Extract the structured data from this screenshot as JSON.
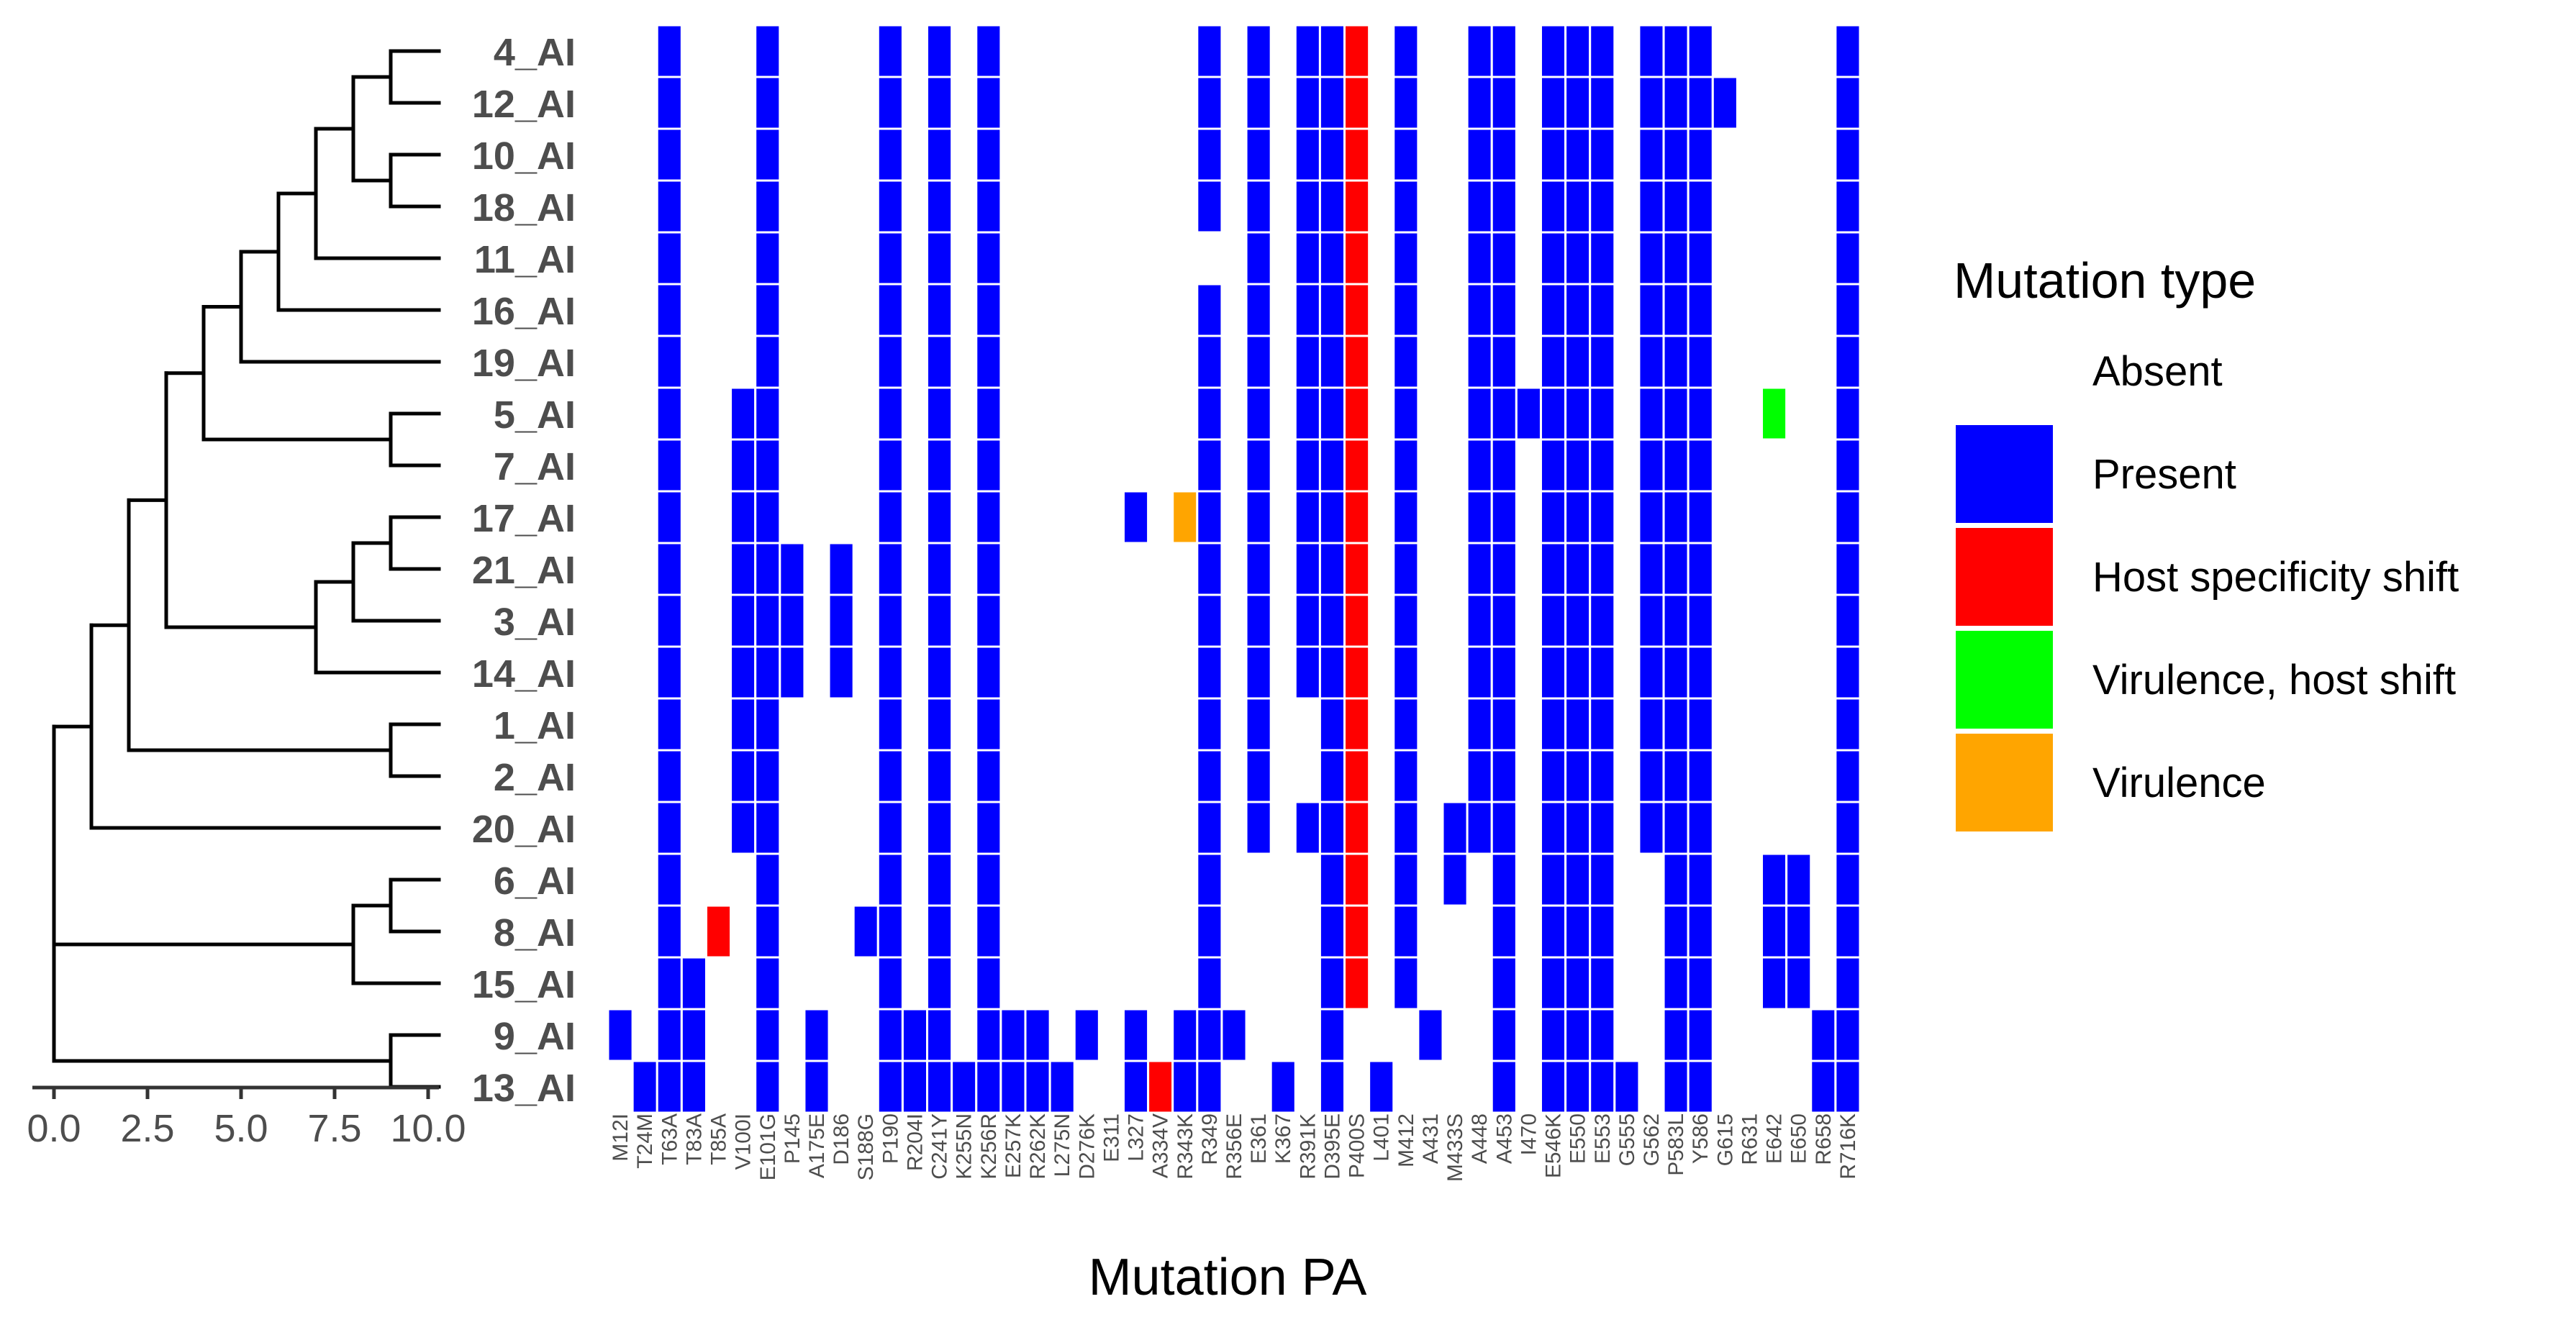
{
  "chart_data": [
    {
      "type": "dendrogram",
      "name": "tree",
      "tick_labels": [
        "0.0",
        "2.5",
        "5.0",
        "7.5",
        "10.0"
      ],
      "xlim": [
        0,
        10
      ],
      "leaves": [
        "4_AI",
        "12_AI",
        "10_AI",
        "18_AI",
        "11_AI",
        "16_AI",
        "19_AI",
        "5_AI",
        "7_AI",
        "17_AI",
        "21_AI",
        "3_AI",
        "14_AI",
        "1_AI",
        "2_AI",
        "20_AI",
        "6_AI",
        "8_AI",
        "15_AI",
        "9_AI",
        "13_AI"
      ],
      "merges": [
        {
          "a": "4_AI",
          "b": "12_AI",
          "h": 9
        },
        {
          "a": "10_AI",
          "b": "18_AI",
          "h": 9
        },
        {
          "a": 0,
          "b": 1,
          "h": 8
        },
        {
          "a": 2,
          "b": "11_AI",
          "h": 7
        },
        {
          "a": 3,
          "b": "16_AI",
          "h": 6
        },
        {
          "a": 4,
          "b": "19_AI",
          "h": 5
        },
        {
          "a": "5_AI",
          "b": "7_AI",
          "h": 9
        },
        {
          "a": 5,
          "b": 6,
          "h": 4
        },
        {
          "a": "17_AI",
          "b": "21_AI",
          "h": 9
        },
        {
          "a": 8,
          "b": "3_AI",
          "h": 8
        },
        {
          "a": 9,
          "b": "14_AI",
          "h": 7
        },
        {
          "a": 7,
          "b": 10,
          "h": 3
        },
        {
          "a": "1_AI",
          "b": "2_AI",
          "h": 9
        },
        {
          "a": 11,
          "b": 12,
          "h": 2
        },
        {
          "a": 13,
          "b": "20_AI",
          "h": 1
        },
        {
          "a": "6_AI",
          "b": "8_AI",
          "h": 9
        },
        {
          "a": 15,
          "b": "15_AI",
          "h": 8
        },
        {
          "a": "9_AI",
          "b": "13_AI",
          "h": 9
        },
        {
          "a": 16,
          "b": 17,
          "h": 0
        },
        {
          "a": 14,
          "b": 18,
          "h": 0
        }
      ]
    },
    {
      "type": "heatmap",
      "name": "mutations",
      "xlabel": "Mutation PA",
      "x": [
        "M12I",
        "T24M",
        "T63A",
        "T83A",
        "T85A",
        "V100I",
        "E101G",
        "P145",
        "A175E",
        "D186",
        "S188G",
        "P190",
        "R204I",
        "C241Y",
        "K255N",
        "K256R",
        "E257K",
        "R262K",
        "L275N",
        "D276K",
        "E311",
        "L327",
        "A334V",
        "R343K",
        "R349",
        "R356E",
        "E361",
        "K367",
        "R391K",
        "D395E",
        "P400S",
        "L401",
        "M412",
        "A431",
        "M433S",
        "A448",
        "A453",
        "I470",
        "E546K",
        "E550",
        "E553",
        "G555",
        "G562",
        "P583L",
        "Y586",
        "G615",
        "R631",
        "E642",
        "E650",
        "R658",
        "R716K"
      ],
      "y": [
        "4_AI",
        "12_AI",
        "10_AI",
        "18_AI",
        "11_AI",
        "16_AI",
        "19_AI",
        "5_AI",
        "7_AI",
        "17_AI",
        "21_AI",
        "3_AI",
        "14_AI",
        "1_AI",
        "2_AI",
        "20_AI",
        "6_AI",
        "8_AI",
        "15_AI",
        "9_AI",
        "13_AI"
      ],
      "categories": [
        "Absent",
        "Present",
        "Host specificity shift",
        "Virulence, host shift",
        "Virulence"
      ],
      "category_colors": [
        "#ffffff",
        "#0000ff",
        "#ff0000",
        "#00ff00",
        "#ffa500"
      ],
      "cells": [
        [
          0,
          0,
          1,
          0,
          0,
          0,
          1,
          0,
          0,
          0,
          0,
          1,
          0,
          1,
          0,
          1,
          0,
          0,
          0,
          0,
          0,
          0,
          0,
          0,
          1,
          0,
          1,
          0,
          1,
          1,
          2,
          0,
          1,
          0,
          0,
          1,
          1,
          0,
          1,
          1,
          1,
          0,
          1,
          1,
          1,
          0,
          0,
          0,
          0,
          0,
          1
        ],
        [
          0,
          0,
          1,
          0,
          0,
          0,
          1,
          0,
          0,
          0,
          0,
          1,
          0,
          1,
          0,
          1,
          0,
          0,
          0,
          0,
          0,
          0,
          0,
          0,
          1,
          0,
          1,
          0,
          1,
          1,
          2,
          0,
          1,
          0,
          0,
          1,
          1,
          0,
          1,
          1,
          1,
          0,
          1,
          1,
          1,
          1,
          0,
          0,
          0,
          0,
          1
        ],
        [
          0,
          0,
          1,
          0,
          0,
          0,
          1,
          0,
          0,
          0,
          0,
          1,
          0,
          1,
          0,
          1,
          0,
          0,
          0,
          0,
          0,
          0,
          0,
          0,
          1,
          0,
          1,
          0,
          1,
          1,
          2,
          0,
          1,
          0,
          0,
          1,
          1,
          0,
          1,
          1,
          1,
          0,
          1,
          1,
          1,
          0,
          0,
          0,
          0,
          0,
          1
        ],
        [
          0,
          0,
          1,
          0,
          0,
          0,
          1,
          0,
          0,
          0,
          0,
          1,
          0,
          1,
          0,
          1,
          0,
          0,
          0,
          0,
          0,
          0,
          0,
          0,
          1,
          0,
          1,
          0,
          1,
          1,
          2,
          0,
          1,
          0,
          0,
          1,
          1,
          0,
          1,
          1,
          1,
          0,
          1,
          1,
          1,
          0,
          0,
          0,
          0,
          0,
          1
        ],
        [
          0,
          0,
          1,
          0,
          0,
          0,
          1,
          0,
          0,
          0,
          0,
          1,
          0,
          1,
          0,
          1,
          0,
          0,
          0,
          0,
          0,
          0,
          0,
          0,
          0,
          0,
          1,
          0,
          1,
          1,
          2,
          0,
          1,
          0,
          0,
          1,
          1,
          0,
          1,
          1,
          1,
          0,
          1,
          1,
          1,
          0,
          0,
          0,
          0,
          0,
          1
        ],
        [
          0,
          0,
          1,
          0,
          0,
          0,
          1,
          0,
          0,
          0,
          0,
          1,
          0,
          1,
          0,
          1,
          0,
          0,
          0,
          0,
          0,
          0,
          0,
          0,
          1,
          0,
          1,
          0,
          1,
          1,
          2,
          0,
          1,
          0,
          0,
          1,
          1,
          0,
          1,
          1,
          1,
          0,
          1,
          1,
          1,
          0,
          0,
          0,
          0,
          0,
          1
        ],
        [
          0,
          0,
          1,
          0,
          0,
          0,
          1,
          0,
          0,
          0,
          0,
          1,
          0,
          1,
          0,
          1,
          0,
          0,
          0,
          0,
          0,
          0,
          0,
          0,
          1,
          0,
          1,
          0,
          1,
          1,
          2,
          0,
          1,
          0,
          0,
          1,
          1,
          0,
          1,
          1,
          1,
          0,
          1,
          1,
          1,
          0,
          0,
          0,
          0,
          0,
          1
        ],
        [
          0,
          0,
          1,
          0,
          0,
          1,
          1,
          0,
          0,
          0,
          0,
          1,
          0,
          1,
          0,
          1,
          0,
          0,
          0,
          0,
          0,
          0,
          0,
          0,
          1,
          0,
          1,
          0,
          1,
          1,
          2,
          0,
          1,
          0,
          0,
          1,
          1,
          1,
          1,
          1,
          1,
          0,
          1,
          1,
          1,
          0,
          0,
          3,
          0,
          0,
          1
        ],
        [
          0,
          0,
          1,
          0,
          0,
          1,
          1,
          0,
          0,
          0,
          0,
          1,
          0,
          1,
          0,
          1,
          0,
          0,
          0,
          0,
          0,
          0,
          0,
          0,
          1,
          0,
          1,
          0,
          1,
          1,
          2,
          0,
          1,
          0,
          0,
          1,
          1,
          0,
          1,
          1,
          1,
          0,
          1,
          1,
          1,
          0,
          0,
          0,
          0,
          0,
          1
        ],
        [
          0,
          0,
          1,
          0,
          0,
          1,
          1,
          0,
          0,
          0,
          0,
          1,
          0,
          1,
          0,
          1,
          0,
          0,
          0,
          0,
          0,
          1,
          0,
          4,
          1,
          0,
          1,
          0,
          1,
          1,
          2,
          0,
          1,
          0,
          0,
          1,
          1,
          0,
          1,
          1,
          1,
          0,
          1,
          1,
          1,
          0,
          0,
          0,
          0,
          0,
          1
        ],
        [
          0,
          0,
          1,
          0,
          0,
          1,
          1,
          1,
          0,
          1,
          0,
          1,
          0,
          1,
          0,
          1,
          0,
          0,
          0,
          0,
          0,
          0,
          0,
          0,
          1,
          0,
          1,
          0,
          1,
          1,
          2,
          0,
          1,
          0,
          0,
          1,
          1,
          0,
          1,
          1,
          1,
          0,
          1,
          1,
          1,
          0,
          0,
          0,
          0,
          0,
          1
        ],
        [
          0,
          0,
          1,
          0,
          0,
          1,
          1,
          1,
          0,
          1,
          0,
          1,
          0,
          1,
          0,
          1,
          0,
          0,
          0,
          0,
          0,
          0,
          0,
          0,
          1,
          0,
          1,
          0,
          1,
          1,
          2,
          0,
          1,
          0,
          0,
          1,
          1,
          0,
          1,
          1,
          1,
          0,
          1,
          1,
          1,
          0,
          0,
          0,
          0,
          0,
          1
        ],
        [
          0,
          0,
          1,
          0,
          0,
          1,
          1,
          1,
          0,
          1,
          0,
          1,
          0,
          1,
          0,
          1,
          0,
          0,
          0,
          0,
          0,
          0,
          0,
          0,
          1,
          0,
          1,
          0,
          1,
          1,
          2,
          0,
          1,
          0,
          0,
          1,
          1,
          0,
          1,
          1,
          1,
          0,
          1,
          1,
          1,
          0,
          0,
          0,
          0,
          0,
          1
        ],
        [
          0,
          0,
          1,
          0,
          0,
          1,
          1,
          0,
          0,
          0,
          0,
          1,
          0,
          1,
          0,
          1,
          0,
          0,
          0,
          0,
          0,
          0,
          0,
          0,
          1,
          0,
          1,
          0,
          0,
          1,
          2,
          0,
          1,
          0,
          0,
          1,
          1,
          0,
          1,
          1,
          1,
          0,
          1,
          1,
          1,
          0,
          0,
          0,
          0,
          0,
          1
        ],
        [
          0,
          0,
          1,
          0,
          0,
          1,
          1,
          0,
          0,
          0,
          0,
          1,
          0,
          1,
          0,
          1,
          0,
          0,
          0,
          0,
          0,
          0,
          0,
          0,
          1,
          0,
          1,
          0,
          0,
          1,
          2,
          0,
          1,
          0,
          0,
          1,
          1,
          0,
          1,
          1,
          1,
          0,
          1,
          1,
          1,
          0,
          0,
          0,
          0,
          0,
          1
        ],
        [
          0,
          0,
          1,
          0,
          0,
          1,
          1,
          0,
          0,
          0,
          0,
          1,
          0,
          1,
          0,
          1,
          0,
          0,
          0,
          0,
          0,
          0,
          0,
          0,
          1,
          0,
          1,
          0,
          1,
          1,
          2,
          0,
          1,
          0,
          1,
          1,
          1,
          0,
          1,
          1,
          1,
          0,
          1,
          1,
          1,
          0,
          0,
          0,
          0,
          0,
          1
        ],
        [
          0,
          0,
          1,
          0,
          0,
          0,
          1,
          0,
          0,
          0,
          0,
          1,
          0,
          1,
          0,
          1,
          0,
          0,
          0,
          0,
          0,
          0,
          0,
          0,
          1,
          0,
          0,
          0,
          0,
          1,
          2,
          0,
          1,
          0,
          1,
          0,
          1,
          0,
          1,
          1,
          1,
          0,
          0,
          1,
          1,
          0,
          0,
          1,
          1,
          0,
          1
        ],
        [
          0,
          0,
          1,
          0,
          2,
          0,
          1,
          0,
          0,
          0,
          1,
          1,
          0,
          1,
          0,
          1,
          0,
          0,
          0,
          0,
          0,
          0,
          0,
          0,
          1,
          0,
          0,
          0,
          0,
          1,
          2,
          0,
          1,
          0,
          0,
          0,
          1,
          0,
          1,
          1,
          1,
          0,
          0,
          1,
          1,
          0,
          0,
          1,
          1,
          0,
          1
        ],
        [
          0,
          0,
          1,
          1,
          0,
          0,
          1,
          0,
          0,
          0,
          0,
          1,
          0,
          1,
          0,
          1,
          0,
          0,
          0,
          0,
          0,
          0,
          0,
          0,
          1,
          0,
          0,
          0,
          0,
          1,
          2,
          0,
          1,
          0,
          0,
          0,
          1,
          0,
          1,
          1,
          1,
          0,
          0,
          1,
          1,
          0,
          0,
          1,
          1,
          0,
          1
        ],
        [
          1,
          0,
          1,
          1,
          0,
          0,
          1,
          0,
          1,
          0,
          0,
          1,
          1,
          1,
          0,
          1,
          1,
          1,
          0,
          1,
          0,
          1,
          0,
          1,
          1,
          1,
          0,
          0,
          0,
          1,
          0,
          0,
          0,
          1,
          0,
          0,
          1,
          0,
          1,
          1,
          1,
          0,
          0,
          1,
          1,
          0,
          0,
          0,
          0,
          1,
          1
        ],
        [
          0,
          1,
          1,
          1,
          0,
          0,
          1,
          0,
          1,
          0,
          0,
          1,
          1,
          1,
          1,
          1,
          1,
          1,
          1,
          0,
          0,
          1,
          2,
          1,
          1,
          0,
          0,
          1,
          0,
          1,
          0,
          1,
          0,
          0,
          0,
          0,
          1,
          0,
          1,
          1,
          1,
          1,
          0,
          1,
          1,
          0,
          0,
          0,
          0,
          1,
          1
        ]
      ],
      "legend": {
        "title": "Mutation type",
        "entries": [
          "Absent",
          "Present",
          "Host specificity shift",
          "Virulence, host shift",
          "Virulence"
        ],
        "placement": "right"
      }
    }
  ]
}
